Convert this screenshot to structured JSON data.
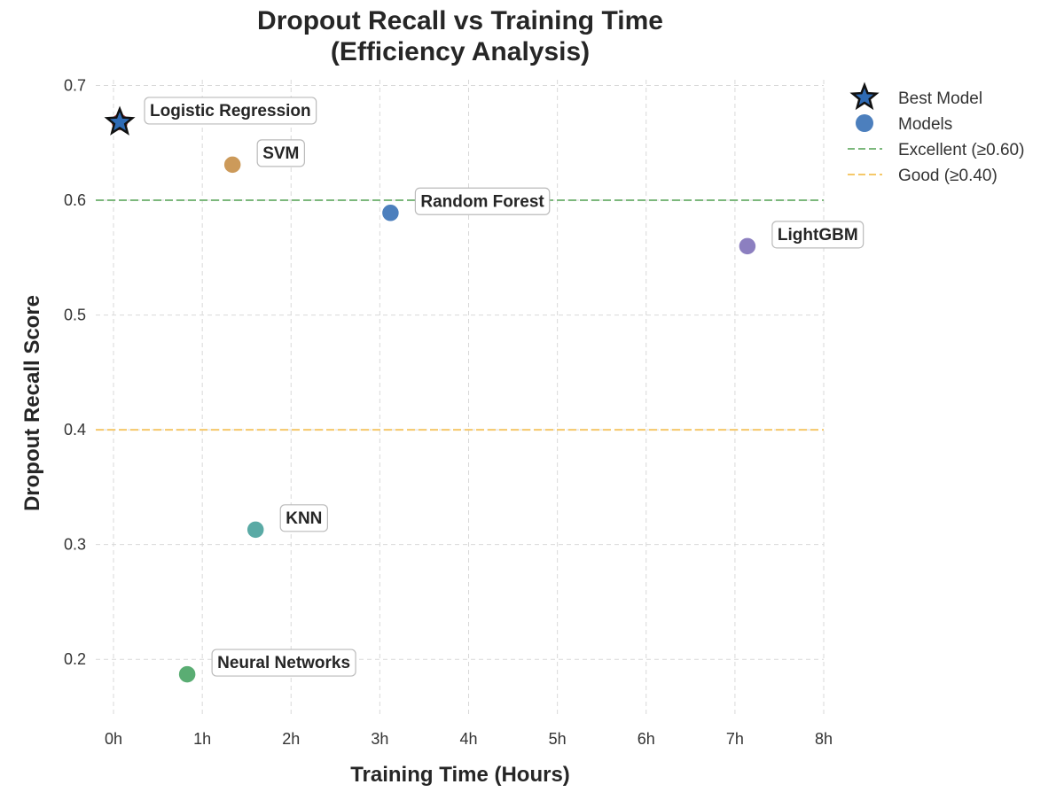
{
  "chart_data": {
    "type": "scatter",
    "title_lines": [
      "Dropout Recall vs Training Time",
      "(Efficiency Analysis)"
    ],
    "xlabel": "Training Time (Hours)",
    "ylabel": "Dropout Recall Score",
    "xlim": [
      -0.2,
      8.0
    ],
    "ylim": [
      0.15,
      0.705
    ],
    "x_ticks": [
      0,
      1,
      2,
      3,
      4,
      5,
      6,
      7,
      8
    ],
    "x_tick_labels": [
      "0h",
      "1h",
      "2h",
      "3h",
      "4h",
      "5h",
      "6h",
      "7h",
      "8h"
    ],
    "y_ticks": [
      0.2,
      0.3,
      0.4,
      0.5,
      0.6,
      0.7
    ],
    "y_tick_labels": [
      "0.2",
      "0.3",
      "0.4",
      "0.5",
      "0.6",
      "0.7"
    ],
    "grid": true,
    "legend_position": "outside-top-right",
    "points": [
      {
        "label": "Logistic Regression",
        "x": 0.07,
        "y": 0.668,
        "color": "#c44e52",
        "best": true
      },
      {
        "label": "SVM",
        "x": 1.34,
        "y": 0.631,
        "color": "#cc9a5a"
      },
      {
        "label": "Random Forest",
        "x": 3.12,
        "y": 0.589,
        "color": "#4c7fbd"
      },
      {
        "label": "LightGBM",
        "x": 7.14,
        "y": 0.56,
        "color": "#8c7fc0"
      },
      {
        "label": "KNN",
        "x": 1.6,
        "y": 0.313,
        "color": "#5aaaa5"
      },
      {
        "label": "Neural Networks",
        "x": 0.83,
        "y": 0.187,
        "color": "#5aad73"
      }
    ],
    "best_marker_color": "#2f6bb5",
    "reference_lines": [
      {
        "y": 0.6,
        "label": "Excellent (≥0.60)",
        "color": "#7cb87c"
      },
      {
        "y": 0.4,
        "label": "Good (≥0.40)",
        "color": "#f5c869"
      }
    ],
    "legend": [
      {
        "label": "Best Model",
        "kind": "star",
        "color": "#2f6bb5"
      },
      {
        "label": "Models",
        "kind": "circle",
        "color": "#4c7fbd"
      },
      {
        "label": "Excellent (≥0.60)",
        "kind": "dash",
        "color": "#7cb87c"
      },
      {
        "label": "Good (≥0.40)",
        "kind": "dash",
        "color": "#f5c869"
      }
    ]
  }
}
